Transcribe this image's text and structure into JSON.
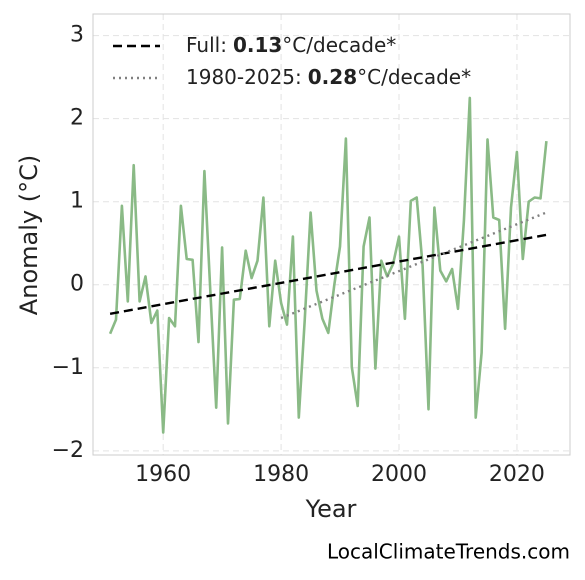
{
  "chart_data": {
    "type": "line",
    "xlabel": "Year",
    "ylabel": "Anomaly (°C)",
    "watermark": "LocalClimateTrends.com",
    "xlim": [
      1948.1,
      2029
    ],
    "ylim": [
      -2.05,
      3.26
    ],
    "xticks": [
      1960,
      1980,
      2000,
      2020
    ],
    "yticks": [
      {
        "value": -2,
        "label": "−2"
      },
      {
        "value": -1,
        "label": "−1"
      },
      0,
      1,
      2,
      3
    ],
    "grid": true,
    "legend": "upper left",
    "series": [
      {
        "color": "#8aba86",
        "x": [
          1951,
          1952,
          1953,
          1954,
          1955,
          1956,
          1957,
          1958,
          1959,
          1960,
          1961,
          1962,
          1963,
          1964,
          1965,
          1966,
          1967,
          1968,
          1969,
          1970,
          1971,
          1972,
          1973,
          1974,
          1975,
          1976,
          1977,
          1978,
          1979,
          1980,
          1981,
          1982,
          1983,
          1984,
          1985,
          1986,
          1987,
          1988,
          1989,
          1990,
          1991,
          1992,
          1993,
          1994,
          1995,
          1996,
          1997,
          1998,
          1999,
          2000,
          2001,
          2002,
          2003,
          2004,
          2005,
          2006,
          2007,
          2008,
          2009,
          2010,
          2011,
          2012,
          2013,
          2014,
          2015,
          2016,
          2017,
          2018,
          2019,
          2020,
          2021,
          2022,
          2023,
          2024,
          2025
        ],
        "values": [
          -0.59,
          -0.42,
          0.95,
          -0.2,
          1.44,
          -0.2,
          0.1,
          -0.46,
          -0.31,
          -1.78,
          -0.4,
          -0.5,
          0.95,
          0.31,
          0.3,
          -0.69,
          1.37,
          -0.07,
          -1.48,
          0.45,
          -1.67,
          -0.18,
          -0.17,
          0.41,
          0.08,
          0.29,
          1.05,
          -0.5,
          0.29,
          -0.22,
          -0.48,
          0.58,
          -1.6,
          -0.43,
          0.87,
          -0.07,
          -0.41,
          -0.58,
          -0.01,
          0.46,
          1.76,
          -0.99,
          -1.46,
          0.46,
          0.81,
          -1.01,
          0.29,
          0.1,
          0.25,
          0.58,
          -0.41,
          1.01,
          1.05,
          0.23,
          -1.5,
          0.93,
          0.17,
          0.04,
          0.19,
          -0.29,
          0.77,
          2.25,
          -1.6,
          -0.82,
          1.75,
          0.81,
          0.78,
          -0.53,
          0.93,
          1.6,
          0.31,
          1.0,
          1.05,
          1.04,
          1.73
        ]
      }
    ],
    "trend_lines": [
      {
        "label": {
          "prefix": "Full:",
          "slope": "0.13",
          "unit": "°C/decade*"
        },
        "color": "#000000",
        "style": "dashed",
        "x": [
          1951,
          2025
        ],
        "values": [
          -0.35,
          0.6
        ]
      },
      {
        "label": {
          "prefix": "1980-2025:",
          "slope": "0.28",
          "unit": "°C/decade*"
        },
        "color": "#808080",
        "style": "dotted",
        "x": [
          1980,
          2025
        ],
        "values": [
          -0.4,
          0.87
        ]
      }
    ]
  }
}
